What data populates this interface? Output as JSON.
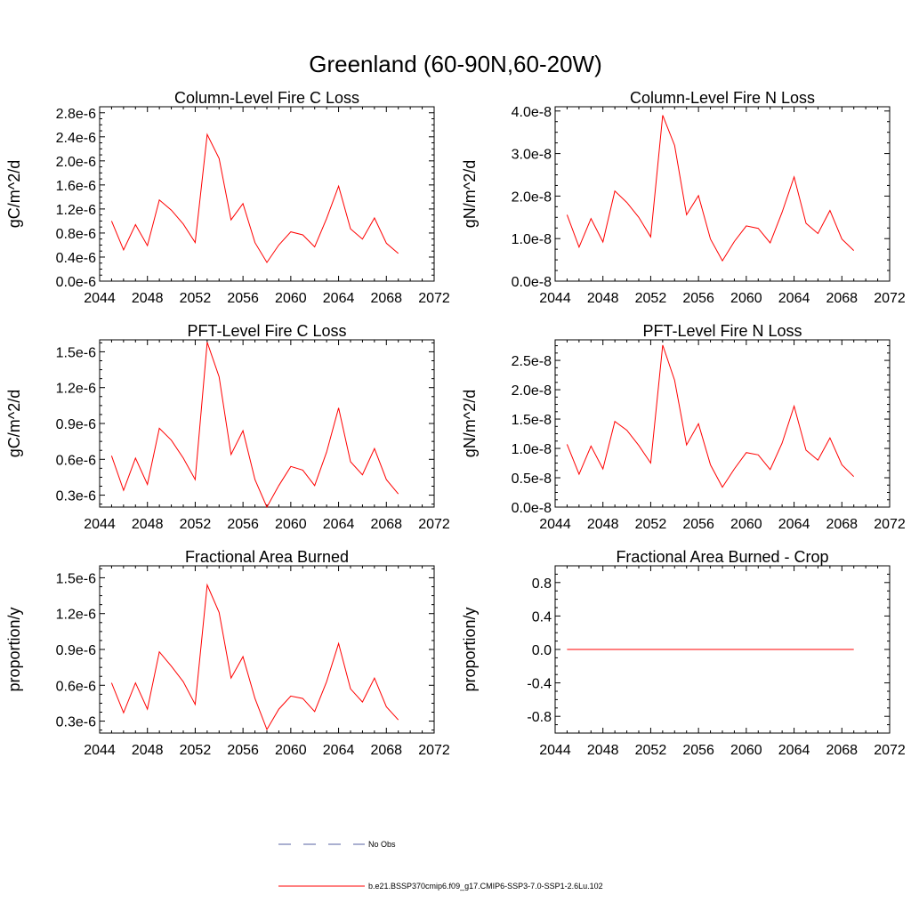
{
  "title": "Greenland (60-90N,60-20W)",
  "colors": {
    "series": "#ff0000",
    "obs": "#5560a0",
    "axis": "#000000"
  },
  "legend": {
    "entries": [
      {
        "label": "No Obs",
        "style": "dashed",
        "color": "#5560a0"
      },
      {
        "label": "b.e21.BSSP370cmip6.f09_g17.CMIP6-SSP3-7.0-SSP1-2.6Lu.102",
        "style": "solid",
        "color": "#ff0000"
      }
    ]
  },
  "chart_data": [
    {
      "type": "line",
      "title": "Column-Level Fire C Loss",
      "ylabel": "gC/m^2/d",
      "xlim": [
        2044,
        2072
      ],
      "ylim": [
        0,
        2.9e-06
      ],
      "xticks": [
        2044,
        2048,
        2052,
        2056,
        2060,
        2064,
        2068,
        2072
      ],
      "yticks": [
        0,
        4e-07,
        8e-07,
        1.2e-06,
        1.6e-06,
        2e-06,
        2.4e-06,
        2.8e-06
      ],
      "ytick_labels": [
        "0.0e-6",
        "0.4e-6",
        "0.8e-6",
        "1.2e-6",
        "1.6e-6",
        "2.0e-6",
        "2.4e-6",
        "2.8e-6"
      ],
      "x": [
        2045,
        2046,
        2047,
        2048,
        2049,
        2050,
        2051,
        2052,
        2053,
        2054,
        2055,
        2056,
        2057,
        2058,
        2059,
        2060,
        2061,
        2062,
        2063,
        2064,
        2065,
        2066,
        2067,
        2068,
        2069
      ],
      "series": [
        {
          "values": [
            1e-06,
            5.2e-07,
            9.4e-07,
            5.9e-07,
            1.35e-06,
            1.18e-06,
            9.5e-07,
            6.4e-07,
            2.44e-06,
            2.04e-06,
            1.02e-06,
            1.29e-06,
            6.4e-07,
            3.1e-07,
            6e-07,
            8.2e-07,
            7.7e-07,
            5.7e-07,
            1.04e-06,
            1.58e-06,
            8.7e-07,
            7e-07,
            1.05e-06,
            6.3e-07,
            4.6e-07
          ]
        }
      ]
    },
    {
      "type": "line",
      "title": "Column-Level Fire N Loss",
      "ylabel": "gN/m^2/d",
      "xlim": [
        2044,
        2072
      ],
      "ylim": [
        0,
        4.1e-08
      ],
      "xticks": [
        2044,
        2048,
        2052,
        2056,
        2060,
        2064,
        2068,
        2072
      ],
      "yticks": [
        0,
        1e-08,
        2e-08,
        3e-08,
        4e-08
      ],
      "ytick_labels": [
        "0.0e-8",
        "1.0e-8",
        "2.0e-8",
        "3.0e-8",
        "4.0e-8"
      ],
      "x": [
        2045,
        2046,
        2047,
        2048,
        2049,
        2050,
        2051,
        2052,
        2053,
        2054,
        2055,
        2056,
        2057,
        2058,
        2059,
        2060,
        2061,
        2062,
        2063,
        2064,
        2065,
        2066,
        2067,
        2068,
        2069
      ],
      "series": [
        {
          "values": [
            1.56e-08,
            8e-09,
            1.47e-08,
            9.2e-09,
            2.12e-08,
            1.85e-08,
            1.5e-08,
            1.04e-08,
            3.9e-08,
            3.19e-08,
            1.56e-08,
            2.01e-08,
            9.9e-09,
            4.8e-09,
            9.3e-09,
            1.3e-08,
            1.24e-08,
            9e-09,
            1.62e-08,
            2.45e-08,
            1.36e-08,
            1.12e-08,
            1.66e-08,
            9.9e-09,
            7.2e-09
          ]
        }
      ]
    },
    {
      "type": "line",
      "title": "PFT-Level Fire C Loss",
      "ylabel": "gC/m^2/d",
      "xlim": [
        2044,
        2072
      ],
      "ylim": [
        2e-07,
        1.6e-06
      ],
      "xticks": [
        2044,
        2048,
        2052,
        2056,
        2060,
        2064,
        2068,
        2072
      ],
      "yticks": [
        3e-07,
        6e-07,
        9e-07,
        1.2e-06,
        1.5e-06
      ],
      "ytick_labels": [
        "0.3e-6",
        "0.6e-6",
        "0.9e-6",
        "1.2e-6",
        "1.5e-6"
      ],
      "x": [
        2045,
        2046,
        2047,
        2048,
        2049,
        2050,
        2051,
        2052,
        2053,
        2054,
        2055,
        2056,
        2057,
        2058,
        2059,
        2060,
        2061,
        2062,
        2063,
        2064,
        2065,
        2066,
        2067,
        2068,
        2069
      ],
      "series": [
        {
          "values": [
            6.3e-07,
            3.4e-07,
            6.1e-07,
            3.9e-07,
            8.6e-07,
            7.6e-07,
            6.1e-07,
            4.3e-07,
            1.58e-06,
            1.29e-06,
            6.4e-07,
            8.4e-07,
            4.3e-07,
            2e-07,
            3.8e-07,
            5.4e-07,
            5.1e-07,
            3.8e-07,
            6.6e-07,
            1.03e-06,
            5.8e-07,
            4.7e-07,
            6.9e-07,
            4.3e-07,
            3.1e-07
          ]
        }
      ]
    },
    {
      "type": "line",
      "title": "PFT-Level Fire N Loss",
      "ylabel": "gN/m^2/d",
      "xlim": [
        2044,
        2072
      ],
      "ylim": [
        0,
        2.85e-08
      ],
      "xticks": [
        2044,
        2048,
        2052,
        2056,
        2060,
        2064,
        2068,
        2072
      ],
      "yticks": [
        0,
        5e-09,
        1e-08,
        1.5e-08,
        2e-08,
        2.5e-08
      ],
      "ytick_labels": [
        "0.0e-8",
        "0.5e-8",
        "1.0e-8",
        "1.5e-8",
        "2.0e-8",
        "2.5e-8"
      ],
      "x": [
        2045,
        2046,
        2047,
        2048,
        2049,
        2050,
        2051,
        2052,
        2053,
        2054,
        2055,
        2056,
        2057,
        2058,
        2059,
        2060,
        2061,
        2062,
        2063,
        2064,
        2065,
        2066,
        2067,
        2068,
        2069
      ],
      "series": [
        {
          "values": [
            1.07e-08,
            5.6e-09,
            1.04e-08,
            6.5e-09,
            1.46e-08,
            1.31e-08,
            1.05e-08,
            7.5e-09,
            2.76e-08,
            2.16e-08,
            1.06e-08,
            1.42e-08,
            7.2e-09,
            3.4e-09,
            6.5e-09,
            9.3e-09,
            8.9e-09,
            6.4e-09,
            1.09e-08,
            1.72e-08,
            9.7e-09,
            8e-09,
            1.18e-08,
            7.2e-09,
            5.2e-09
          ]
        }
      ]
    },
    {
      "type": "line",
      "title": "Fractional Area Burned",
      "ylabel": "proportion/y",
      "xlim": [
        2044,
        2072
      ],
      "ylim": [
        2e-07,
        1.6e-06
      ],
      "xticks": [
        2044,
        2048,
        2052,
        2056,
        2060,
        2064,
        2068,
        2072
      ],
      "yticks": [
        3e-07,
        6e-07,
        9e-07,
        1.2e-06,
        1.5e-06
      ],
      "ytick_labels": [
        "0.3e-6",
        "0.6e-6",
        "0.9e-6",
        "1.2e-6",
        "1.5e-6"
      ],
      "x": [
        2045,
        2046,
        2047,
        2048,
        2049,
        2050,
        2051,
        2052,
        2053,
        2054,
        2055,
        2056,
        2057,
        2058,
        2059,
        2060,
        2061,
        2062,
        2063,
        2064,
        2065,
        2066,
        2067,
        2068,
        2069
      ],
      "series": [
        {
          "values": [
            6.2e-07,
            3.7e-07,
            6.2e-07,
            4e-07,
            8.8e-07,
            7.6e-07,
            6.3e-07,
            4.4e-07,
            1.44e-06,
            1.21e-06,
            6.6e-07,
            8.4e-07,
            4.9e-07,
            2.3e-07,
            4e-07,
            5.1e-07,
            4.9e-07,
            3.8e-07,
            6.3e-07,
            9.5e-07,
            5.7e-07,
            4.6e-07,
            6.6e-07,
            4.2e-07,
            3.1e-07
          ]
        }
      ]
    },
    {
      "type": "line",
      "title": "Fractional Area Burned - Crop",
      "ylabel": "proportion/y",
      "xlim": [
        2044,
        2072
      ],
      "ylim": [
        -1.0,
        1.0
      ],
      "xticks": [
        2044,
        2048,
        2052,
        2056,
        2060,
        2064,
        2068,
        2072
      ],
      "yticks": [
        -0.8,
        -0.4,
        0.0,
        0.4,
        0.8
      ],
      "ytick_labels": [
        "-0.8",
        "-0.4",
        "0.0",
        "0.4",
        "0.8"
      ],
      "x": [
        2045,
        2046,
        2047,
        2048,
        2049,
        2050,
        2051,
        2052,
        2053,
        2054,
        2055,
        2056,
        2057,
        2058,
        2059,
        2060,
        2061,
        2062,
        2063,
        2064,
        2065,
        2066,
        2067,
        2068,
        2069
      ],
      "series": [
        {
          "values": [
            0,
            0,
            0,
            0,
            0,
            0,
            0,
            0,
            0,
            0,
            0,
            0,
            0,
            0,
            0,
            0,
            0,
            0,
            0,
            0,
            0,
            0,
            0,
            0,
            0
          ]
        }
      ]
    }
  ]
}
